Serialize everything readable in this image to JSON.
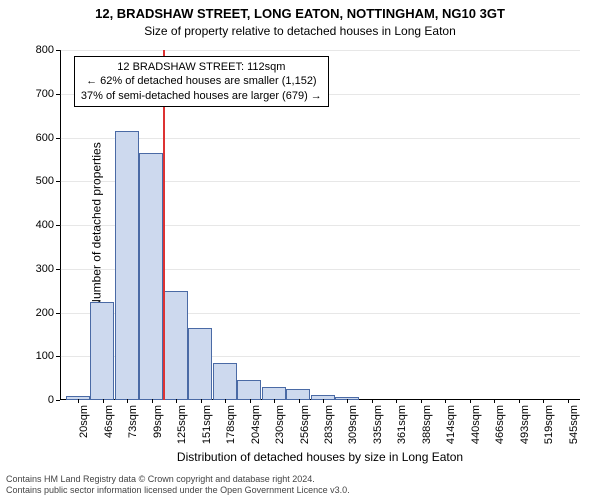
{
  "header": {
    "title": "12, BRADSHAW STREET, LONG EATON, NOTTINGHAM, NG10 3GT",
    "subtitle": "Size of property relative to detached houses in Long Eaton"
  },
  "axes": {
    "ylabel": "Number of detached properties",
    "xlabel": "Distribution of detached houses by size in Long Eaton"
  },
  "chart": {
    "type": "histogram",
    "ymax": 800,
    "ytick_step": 100,
    "bar_fill": "#cdd9ee",
    "bar_stroke": "#4a6aa5",
    "bar_stroke_width": 1,
    "marker_color": "#d33",
    "background_color": "#ffffff",
    "grid_color": "#888888",
    "x_labels": [
      "20sqm",
      "46sqm",
      "73sqm",
      "99sqm",
      "125sqm",
      "151sqm",
      "178sqm",
      "204sqm",
      "230sqm",
      "256sqm",
      "283sqm",
      "309sqm",
      "335sqm",
      "361sqm",
      "388sqm",
      "414sqm",
      "440sqm",
      "466sqm",
      "493sqm",
      "519sqm",
      "545sqm"
    ],
    "values": [
      10,
      225,
      615,
      565,
      250,
      165,
      85,
      45,
      30,
      25,
      12,
      8,
      0,
      0,
      0,
      0,
      0,
      0,
      0,
      0,
      0
    ],
    "marker_index": 3.5
  },
  "annotation": {
    "line1": "12 BRADSHAW STREET: 112sqm",
    "line2": "← 62% of detached houses are smaller (1,152)",
    "line3": "37% of semi-detached houses are larger (679) →"
  },
  "footer": {
    "line1": "Contains HM Land Registry data © Crown copyright and database right 2024.",
    "line2": "Contains public sector information licensed under the Open Government Licence v3.0."
  }
}
